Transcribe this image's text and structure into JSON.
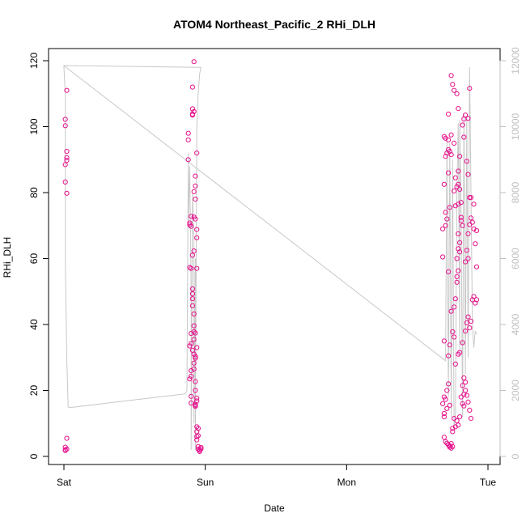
{
  "chart_data": {
    "type": "scatter",
    "title": "ATOM4 Northeast_Pacific_2 RHi_DLH",
    "xlabel": "Date",
    "ylabel": "RHi_DLH",
    "x_ticks": [
      {
        "label": "Sat",
        "value": 0
      },
      {
        "label": "Sun",
        "value": 1
      },
      {
        "label": "Mon",
        "value": 2
      },
      {
        "label": "Tue",
        "value": 3
      }
    ],
    "ylim": [
      0,
      120
    ],
    "y_ticks": [
      0,
      20,
      40,
      60,
      80,
      100,
      120
    ],
    "y2lim": [
      0,
      12000
    ],
    "y2_ticks": [
      "0",
      "2000",
      "4000",
      "6000",
      "8000",
      "10000",
      "12000"
    ],
    "colors": {
      "points": "#e6108c",
      "altitude_line": "#c8c8c8",
      "axis": "#000000",
      "right_axis": "#bfbfbf"
    },
    "grid": false,
    "series": [
      {
        "type": "scatter",
        "axis": "left",
        "points": [
          [
            0.01,
            2.0
          ],
          [
            0.01,
            2.8
          ],
          [
            0.02,
            5.5
          ],
          [
            0.01,
            1.8
          ],
          [
            0.02,
            2.2
          ],
          [
            0.02,
            79.8
          ],
          [
            0.01,
            83.2
          ],
          [
            0.01,
            88.5
          ],
          [
            0.02,
            89.8
          ],
          [
            0.02,
            90.6
          ],
          [
            0.02,
            92.5
          ],
          [
            0.01,
            100.3
          ],
          [
            0.01,
            102.2
          ],
          [
            0.02,
            111.0
          ],
          [
            0.88,
            90.0
          ],
          [
            0.88,
            96.0
          ],
          [
            0.88,
            98.0
          ],
          [
            0.89,
            70.2
          ],
          [
            0.89,
            70.8
          ],
          [
            0.9,
            72.8
          ],
          [
            0.9,
            69.8
          ],
          [
            0.89,
            57.3
          ],
          [
            0.9,
            57.0
          ],
          [
            0.9,
            37.3
          ],
          [
            0.89,
            33.5
          ],
          [
            0.9,
            34.2
          ],
          [
            0.91,
            32.2
          ],
          [
            0.9,
            26.0
          ],
          [
            0.89,
            23.5
          ],
          [
            0.9,
            24.3
          ],
          [
            0.9,
            18.2
          ],
          [
            0.9,
            16.2
          ],
          [
            0.91,
            61.0
          ],
          [
            0.92,
            62.3
          ],
          [
            0.91,
            50.8
          ],
          [
            0.91,
            47.8
          ],
          [
            0.91,
            49.3
          ],
          [
            0.91,
            45.7
          ],
          [
            0.92,
            43.2
          ],
          [
            0.92,
            39.6
          ],
          [
            0.92,
            37.8
          ],
          [
            0.92,
            35.5
          ],
          [
            0.92,
            31.0
          ],
          [
            0.93,
            29.8
          ],
          [
            0.93,
            30.3
          ],
          [
            0.92,
            26.5
          ],
          [
            0.92,
            28.3
          ],
          [
            0.93,
            22.7
          ],
          [
            0.93,
            20.0
          ],
          [
            0.93,
            15.8
          ],
          [
            0.92,
            72.6
          ],
          [
            0.93,
            72.0
          ],
          [
            0.92,
            80.3
          ],
          [
            0.93,
            82.0
          ],
          [
            0.93,
            85.0
          ],
          [
            0.93,
            78.0
          ],
          [
            0.94,
            68.8
          ],
          [
            0.94,
            66.3
          ],
          [
            0.94,
            57.0
          ],
          [
            0.93,
            37.4
          ],
          [
            0.94,
            33.0
          ],
          [
            0.94,
            16.8
          ],
          [
            0.94,
            17.7
          ],
          [
            0.93,
            15.2
          ],
          [
            0.93,
            15.5
          ],
          [
            0.94,
            9.0
          ],
          [
            0.95,
            8.5
          ],
          [
            0.94,
            7.5
          ],
          [
            0.95,
            6.3
          ],
          [
            0.94,
            6.0
          ],
          [
            0.94,
            5.0
          ],
          [
            0.95,
            3.0
          ],
          [
            0.95,
            2.2
          ],
          [
            0.96,
            1.5
          ],
          [
            0.96,
            1.9
          ],
          [
            0.97,
            2.3
          ],
          [
            0.97,
            2.7
          ],
          [
            0.96,
            2.0
          ],
          [
            0.91,
            103.8
          ],
          [
            0.91,
            103.5
          ],
          [
            0.91,
            105.4
          ],
          [
            0.92,
            104.6
          ],
          [
            0.94,
            92.0
          ],
          [
            0.91,
            112.0
          ],
          [
            0.92,
            119.7
          ],
          [
            2.68,
            16.0
          ],
          [
            2.69,
            18.0
          ],
          [
            2.69,
            13.0
          ],
          [
            2.69,
            12.0
          ],
          [
            2.7,
            17.3
          ],
          [
            2.71,
            14.5
          ],
          [
            2.71,
            20.0
          ],
          [
            2.72,
            22.0
          ],
          [
            2.73,
            15.5
          ],
          [
            2.7,
            4.5
          ],
          [
            2.69,
            5.8
          ],
          [
            2.71,
            4.0
          ],
          [
            2.72,
            3.5
          ],
          [
            2.73,
            3.2
          ],
          [
            2.73,
            2.8
          ],
          [
            2.74,
            3.9
          ],
          [
            2.74,
            2.5
          ],
          [
            2.75,
            3.0
          ],
          [
            2.75,
            8.5
          ],
          [
            2.75,
            7.5
          ],
          [
            2.76,
            11.5
          ],
          [
            2.77,
            9.0
          ],
          [
            2.78,
            10.8
          ],
          [
            2.79,
            9.5
          ],
          [
            2.8,
            12.0
          ],
          [
            2.82,
            16.0
          ],
          [
            2.81,
            18.0
          ],
          [
            2.83,
            15.3
          ],
          [
            2.83,
            18.8
          ],
          [
            2.82,
            21.5
          ],
          [
            2.83,
            23.8
          ],
          [
            2.84,
            22.5
          ],
          [
            2.84,
            20.0
          ],
          [
            2.85,
            18.5
          ],
          [
            2.86,
            16.5
          ],
          [
            2.87,
            14.0
          ],
          [
            2.88,
            11.5
          ],
          [
            2.69,
            35.0
          ],
          [
            2.72,
            30.5
          ],
          [
            2.73,
            33.8
          ],
          [
            2.75,
            37.8
          ],
          [
            2.76,
            36.2
          ],
          [
            2.77,
            28.0
          ],
          [
            2.79,
            31.0
          ],
          [
            2.8,
            31.5
          ],
          [
            2.82,
            34.5
          ],
          [
            2.84,
            38.0
          ],
          [
            2.85,
            40.5
          ],
          [
            2.86,
            42.3
          ],
          [
            2.87,
            39.0
          ],
          [
            2.88,
            41.0
          ],
          [
            2.89,
            47.5
          ],
          [
            2.9,
            48.5
          ],
          [
            2.91,
            46.5
          ],
          [
            2.92,
            47.5
          ],
          [
            2.68,
            60.5
          ],
          [
            2.68,
            69.0
          ],
          [
            2.7,
            70.0
          ],
          [
            2.71,
            72.0
          ],
          [
            2.72,
            56.0
          ],
          [
            2.74,
            44.0
          ],
          [
            2.76,
            45.3
          ],
          [
            2.77,
            47.8
          ],
          [
            2.78,
            52.8
          ],
          [
            2.78,
            54.5
          ],
          [
            2.79,
            56.3
          ],
          [
            2.78,
            60.0
          ],
          [
            2.79,
            63.0
          ],
          [
            2.8,
            62.0
          ],
          [
            2.8,
            64.8
          ],
          [
            2.79,
            67.5
          ],
          [
            2.81,
            71.5
          ],
          [
            2.82,
            70.0
          ],
          [
            2.84,
            59.0
          ],
          [
            2.85,
            62.5
          ],
          [
            2.86,
            60.0
          ],
          [
            2.86,
            67.5
          ],
          [
            2.87,
            70.3
          ],
          [
            2.88,
            72.3
          ],
          [
            2.89,
            71.0
          ],
          [
            2.9,
            69.0
          ],
          [
            2.91,
            64.5
          ],
          [
            2.92,
            57.5
          ],
          [
            2.92,
            68.5
          ],
          [
            2.9,
            76.5
          ],
          [
            2.88,
            78.5
          ],
          [
            2.87,
            78.5
          ],
          [
            2.86,
            85.5
          ],
          [
            2.85,
            89.5
          ],
          [
            2.83,
            96.8
          ],
          [
            2.83,
            102.3
          ],
          [
            2.86,
            102.5
          ],
          [
            2.87,
            111.6
          ],
          [
            2.84,
            103.5
          ],
          [
            2.82,
            100.5
          ],
          [
            2.79,
            105.5
          ],
          [
            2.78,
            110.0
          ],
          [
            2.76,
            111.0
          ],
          [
            2.75,
            112.8
          ],
          [
            2.74,
            115.5
          ],
          [
            2.72,
            103.8
          ],
          [
            2.7,
            96.5
          ],
          [
            2.69,
            97.0
          ],
          [
            2.7,
            91.0
          ],
          [
            2.71,
            92.0
          ],
          [
            2.72,
            93.0
          ],
          [
            2.73,
            92.5
          ],
          [
            2.72,
            96.0
          ],
          [
            2.74,
            91.5
          ],
          [
            2.74,
            97.5
          ],
          [
            2.76,
            95.0
          ],
          [
            2.8,
            91.0
          ],
          [
            2.79,
            86.5
          ],
          [
            2.79,
            82.5
          ],
          [
            2.8,
            81.0
          ],
          [
            2.81,
            77.0
          ],
          [
            2.79,
            76.5
          ],
          [
            2.77,
            76.0
          ],
          [
            2.73,
            75.5
          ],
          [
            2.7,
            74.0
          ],
          [
            2.69,
            82.5
          ],
          [
            2.72,
            86.0
          ],
          [
            2.77,
            84.5
          ],
          [
            2.78,
            81.8
          ],
          [
            2.76,
            80.5
          ],
          [
            2.81,
            72.5
          ]
        ]
      },
      {
        "type": "line",
        "axis": "right",
        "points": [
          [
            0.0,
            11850
          ],
          [
            0.0,
            11800
          ],
          [
            0.01,
            11000
          ],
          [
            0.01,
            9000
          ],
          [
            0.01,
            6000
          ],
          [
            0.02,
            3000
          ],
          [
            0.03,
            1500
          ],
          [
            0.04,
            1480
          ],
          [
            0.86,
            1900
          ],
          [
            0.87,
            2000
          ],
          [
            0.88,
            9200
          ],
          [
            0.88,
            7000
          ],
          [
            0.89,
            8800
          ],
          [
            0.9,
            5000
          ],
          [
            0.9,
            200
          ],
          [
            0.91,
            8000
          ],
          [
            0.92,
            6500
          ],
          [
            0.92,
            1000
          ],
          [
            0.93,
            6000
          ],
          [
            0.93,
            200
          ],
          [
            0.94,
            10000
          ],
          [
            0.95,
            11000
          ],
          [
            0.96,
            11600
          ],
          [
            0.97,
            11800
          ],
          [
            0.97,
            11800
          ],
          [
            0.02,
            11850
          ],
          [
            0.0,
            11850
          ],
          [
            2.7,
            2900
          ],
          [
            2.71,
            9600
          ],
          [
            2.72,
            1800
          ],
          [
            2.73,
            9500
          ],
          [
            2.74,
            1200
          ],
          [
            2.75,
            9000
          ],
          [
            2.76,
            900
          ],
          [
            2.77,
            1300
          ],
          [
            2.78,
            8000
          ],
          [
            2.79,
            10100
          ],
          [
            2.8,
            3000
          ],
          [
            2.8,
            10200
          ],
          [
            2.81,
            7500
          ],
          [
            2.82,
            1200
          ],
          [
            2.83,
            10400
          ],
          [
            2.84,
            2500
          ],
          [
            2.85,
            10300
          ],
          [
            2.86,
            3000
          ],
          [
            2.87,
            11800
          ],
          [
            2.88,
            8000
          ],
          [
            2.89,
            4000
          ],
          [
            2.9,
            3300
          ],
          [
            2.91,
            3800
          ],
          [
            2.92,
            3700
          ]
        ]
      }
    ]
  }
}
